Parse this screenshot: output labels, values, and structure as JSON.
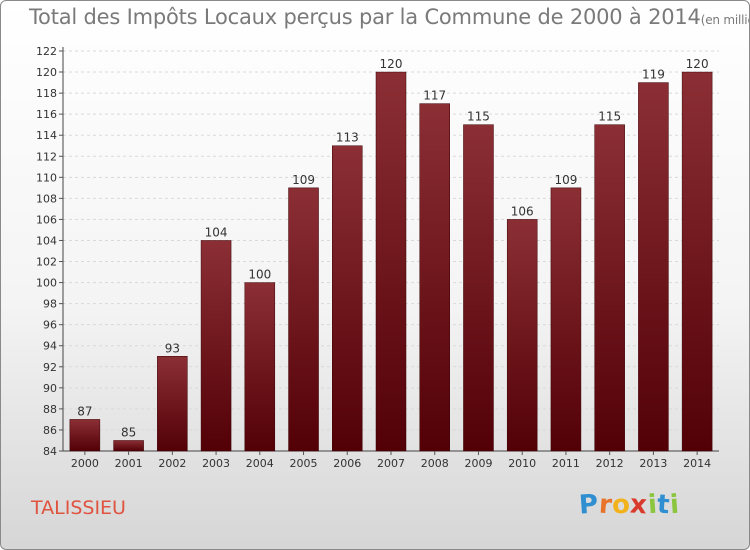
{
  "header": {
    "title": "Total des Impôts Locaux perçus par la Commune de 2000 à 2014",
    "unit": "(en milliers d'€)"
  },
  "footer": {
    "commune": "TALISSIEU",
    "brand": "Proxiti",
    "brand_letters": [
      {
        "char": "P",
        "color": "#2f8fd0"
      },
      {
        "char": "r",
        "color": "#e8732a"
      },
      {
        "char": "o",
        "color": "#f2b21b"
      },
      {
        "char": "x",
        "color": "#d93a2b"
      },
      {
        "char": "i",
        "color": "#8cc63f"
      },
      {
        "char": "t",
        "color": "#2f8fd0"
      },
      {
        "char": "i",
        "color": "#8cc63f"
      }
    ]
  },
  "colors": {
    "bar_top": "#8b2f35",
    "bar_bottom": "#520006",
    "axis_text": "#333333",
    "grid": "#d9d9d9"
  },
  "chart_data": {
    "type": "bar",
    "categories": [
      "2000",
      "2001",
      "2002",
      "2003",
      "2004",
      "2005",
      "2006",
      "2007",
      "2008",
      "2009",
      "2010",
      "2011",
      "2012",
      "2013",
      "2014"
    ],
    "values": [
      87,
      85,
      93,
      104,
      100,
      109,
      113,
      120,
      117,
      115,
      106,
      109,
      115,
      119,
      120
    ],
    "ylim": [
      84,
      122
    ],
    "yticks": [
      84,
      86,
      88,
      90,
      92,
      94,
      96,
      98,
      100,
      102,
      104,
      106,
      108,
      110,
      112,
      114,
      116,
      118,
      120,
      122
    ],
    "grid": true,
    "data_labels": true
  }
}
